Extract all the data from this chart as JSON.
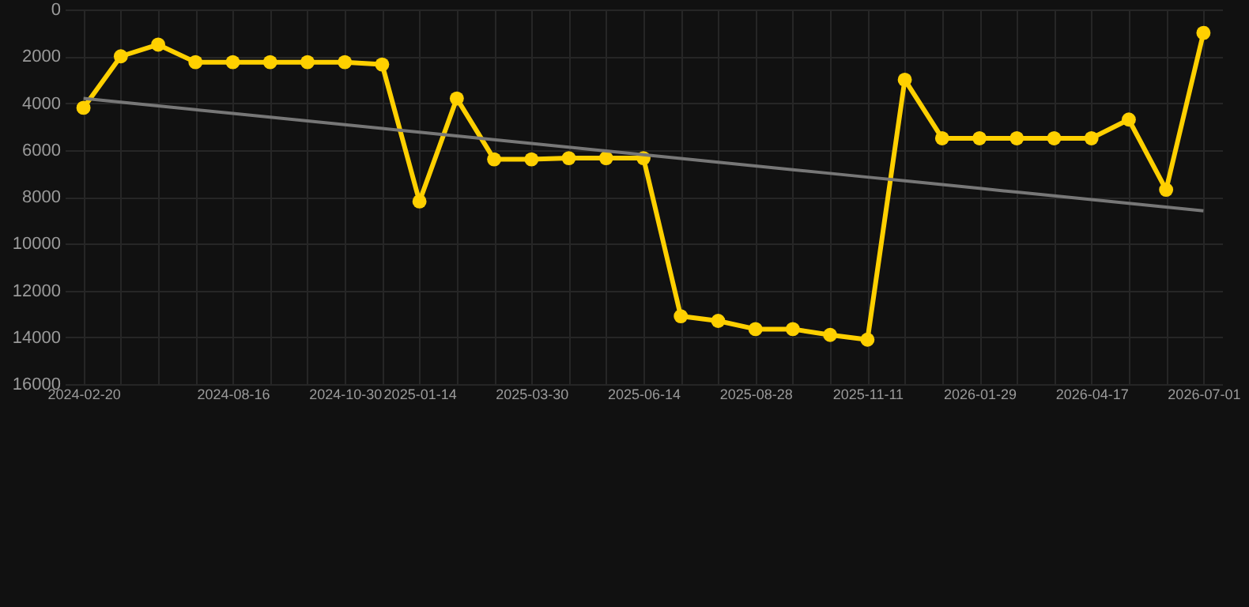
{
  "chart_data": {
    "type": "line",
    "categories": [
      "2024-02-20",
      null,
      null,
      null,
      "2024-08-16",
      null,
      null,
      "2024-10-30",
      null,
      "2025-01-14",
      null,
      null,
      "2025-03-30",
      null,
      null,
      "2025-06-14",
      null,
      null,
      "2025-08-28",
      null,
      null,
      "2025-11-11",
      null,
      null,
      "2026-01-29",
      null,
      null,
      "2026-04-17",
      null,
      null,
      "2026-07-01"
    ],
    "series": [
      {
        "color": "#ffd000",
        "values": [
          4200,
          2000,
          1500,
          2250,
          2250,
          2250,
          2250,
          2250,
          2350,
          8200,
          3800,
          6400,
          6400,
          6350,
          6350,
          6350,
          13100,
          13300,
          13650,
          13650,
          13900,
          14100,
          3000,
          5500,
          5500,
          5500,
          5500,
          5500,
          4700,
          7700,
          1000
        ]
      },
      {
        "type": "line",
        "color": "#777777",
        "marker": "none",
        "values": [
          3800,
          3960,
          4120,
          4280,
          4440,
          4600,
          4760,
          4920,
          5080,
          5240,
          5400,
          5560,
          5720,
          5880,
          6040,
          6200,
          6360,
          6520,
          6680,
          6840,
          7000,
          7160,
          7320,
          7480,
          7640,
          7800,
          7960,
          8120,
          8280,
          8440,
          8600
        ]
      }
    ],
    "ylim": [
      16000,
      0
    ],
    "yticks": [
      0,
      2000,
      4000,
      6000,
      8000,
      10000,
      12000,
      14000,
      16000
    ],
    "grid": true,
    "marker": "circle"
  }
}
